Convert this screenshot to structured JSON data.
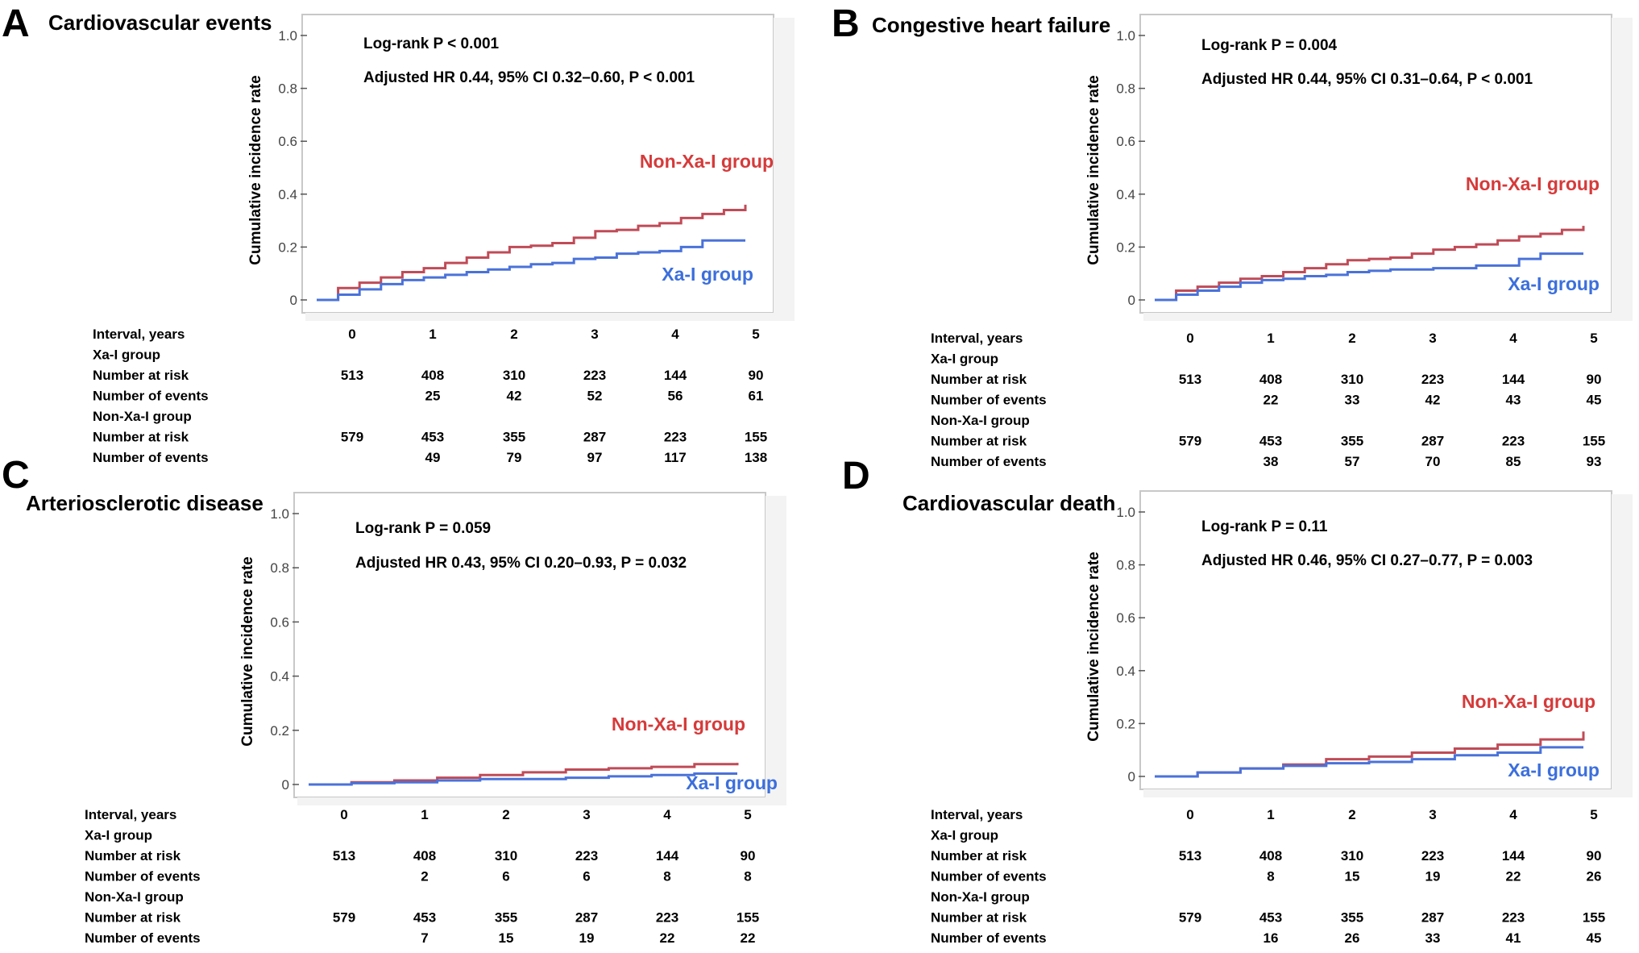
{
  "colors": {
    "xa_i": "#4a72d9",
    "non_xa_i": "#c04b57",
    "non_xa_i_label": "#d63a3a",
    "xa_i_label": "#3c6fdc",
    "plot_border": "#c8c8c8",
    "axis": "#555555"
  },
  "risk_table_labels": [
    "Interval, years",
    "Xa-I group",
    "Number at risk",
    "Number of events",
    "Non-Xa-I group",
    "Number at risk",
    "Number of events"
  ],
  "chart_data": [
    {
      "type": "line",
      "panel": "A",
      "title": "Cardiovascular events",
      "ylabel": "Cumulative incidence rate",
      "xlabel": "",
      "ylim": [
        0,
        1.0
      ],
      "xlim": [
        0,
        5
      ],
      "yticks": [
        "0",
        "0.2",
        "0.4",
        "0.6",
        "0.8",
        "1.0"
      ],
      "annotations": [
        "Log-rank P < 0.001",
        "Adjusted HR 0.44, 95% CI 0.32–0.60, P < 0.001"
      ],
      "series_labels": {
        "non_xa_i": "Non-Xa-I group",
        "xa_i": "Xa-I group"
      },
      "series": [
        {
          "name": "Non-Xa-I group",
          "x": [
            0,
            0.25,
            0.5,
            0.75,
            1,
            1.25,
            1.5,
            1.75,
            2,
            2.25,
            2.5,
            2.75,
            3,
            3.25,
            3.5,
            3.75,
            4,
            4.25,
            4.5,
            4.75,
            5
          ],
          "y": [
            0,
            0.045,
            0.065,
            0.085,
            0.105,
            0.12,
            0.14,
            0.16,
            0.18,
            0.2,
            0.205,
            0.215,
            0.235,
            0.26,
            0.265,
            0.28,
            0.29,
            0.31,
            0.325,
            0.34,
            0.36
          ]
        },
        {
          "name": "Xa-I group",
          "x": [
            0,
            0.25,
            0.5,
            0.75,
            1,
            1.25,
            1.5,
            1.75,
            2,
            2.25,
            2.5,
            2.75,
            3,
            3.25,
            3.5,
            3.75,
            4,
            4.25,
            4.5,
            4.75,
            5
          ],
          "y": [
            0,
            0.02,
            0.04,
            0.06,
            0.075,
            0.085,
            0.095,
            0.105,
            0.115,
            0.125,
            0.135,
            0.14,
            0.155,
            0.16,
            0.175,
            0.18,
            0.185,
            0.2,
            0.225,
            0.225,
            0.225
          ]
        }
      ],
      "risk_table": {
        "intervals": [
          "0",
          "1",
          "2",
          "3",
          "4",
          "5"
        ],
        "xa_i_at_risk": [
          "513",
          "408",
          "310",
          "223",
          "144",
          "90"
        ],
        "xa_i_events": [
          "",
          "25",
          "42",
          "52",
          "56",
          "61"
        ],
        "non_xa_i_at_risk": [
          "579",
          "453",
          "355",
          "287",
          "223",
          "155"
        ],
        "non_xa_i_events": [
          "",
          "49",
          "79",
          "97",
          "117",
          "138"
        ]
      }
    },
    {
      "type": "line",
      "panel": "B",
      "title": "Congestive heart failure",
      "ylabel": "Cumulative incidence rate",
      "xlabel": "",
      "ylim": [
        0,
        1.0
      ],
      "xlim": [
        0,
        5
      ],
      "yticks": [
        "0",
        "0.2",
        "0.4",
        "0.6",
        "0.8",
        "1.0"
      ],
      "annotations": [
        "Log-rank P = 0.004",
        "Adjusted HR 0.44, 95% CI 0.31–0.64, P < 0.001"
      ],
      "series_labels": {
        "non_xa_i": "Non-Xa-I group",
        "xa_i": "Xa-I group"
      },
      "series": [
        {
          "name": "Non-Xa-I group",
          "x": [
            0,
            0.25,
            0.5,
            0.75,
            1,
            1.25,
            1.5,
            1.75,
            2,
            2.25,
            2.5,
            2.75,
            3,
            3.25,
            3.5,
            3.75,
            4,
            4.25,
            4.5,
            4.75,
            5
          ],
          "y": [
            0,
            0.035,
            0.05,
            0.065,
            0.08,
            0.09,
            0.105,
            0.12,
            0.135,
            0.15,
            0.155,
            0.16,
            0.175,
            0.19,
            0.2,
            0.21,
            0.225,
            0.24,
            0.25,
            0.265,
            0.28
          ]
        },
        {
          "name": "Xa-I group",
          "x": [
            0,
            0.25,
            0.5,
            0.75,
            1,
            1.25,
            1.5,
            1.75,
            2,
            2.25,
            2.5,
            2.75,
            3,
            3.25,
            3.5,
            3.75,
            4,
            4.25,
            4.5,
            4.75,
            5
          ],
          "y": [
            0,
            0.02,
            0.035,
            0.05,
            0.065,
            0.075,
            0.08,
            0.09,
            0.095,
            0.105,
            0.11,
            0.115,
            0.115,
            0.12,
            0.12,
            0.13,
            0.13,
            0.155,
            0.175,
            0.175,
            0.175
          ]
        }
      ],
      "risk_table": {
        "intervals": [
          "0",
          "1",
          "2",
          "3",
          "4",
          "5"
        ],
        "xa_i_at_risk": [
          "513",
          "408",
          "310",
          "223",
          "144",
          "90"
        ],
        "xa_i_events": [
          "",
          "22",
          "33",
          "42",
          "43",
          "45"
        ],
        "non_xa_i_at_risk": [
          "579",
          "453",
          "355",
          "287",
          "223",
          "155"
        ],
        "non_xa_i_events": [
          "",
          "38",
          "57",
          "70",
          "85",
          "93"
        ]
      }
    },
    {
      "type": "line",
      "panel": "C",
      "title": "Arteriosclerotic disease",
      "ylabel": "Cumulative incidence rate",
      "xlabel": "",
      "ylim": [
        0,
        1.0
      ],
      "xlim": [
        0,
        5
      ],
      "yticks": [
        "0",
        "0.2",
        "0.4",
        "0.6",
        "0.8",
        "1.0"
      ],
      "annotations": [
        "Log-rank P = 0.059",
        "Adjusted HR 0.43, 95% CI 0.20–0.93, P = 0.032"
      ],
      "series_labels": {
        "non_xa_i": "Non-Xa-I group",
        "xa_i": "Xa-I group"
      },
      "series": [
        {
          "name": "Non-Xa-I group",
          "x": [
            0,
            0.5,
            1,
            1.5,
            2,
            2.5,
            3,
            3.5,
            4,
            4.5,
            5
          ],
          "y": [
            0,
            0.008,
            0.015,
            0.025,
            0.035,
            0.045,
            0.055,
            0.06,
            0.065,
            0.075,
            0.08
          ]
        },
        {
          "name": "Xa-I group",
          "x": [
            0,
            0.5,
            1,
            1.5,
            2,
            2.5,
            3,
            3.5,
            4,
            4.5,
            5
          ],
          "y": [
            0,
            0.005,
            0.008,
            0.015,
            0.02,
            0.02,
            0.025,
            0.03,
            0.035,
            0.04,
            0.04
          ]
        }
      ],
      "risk_table": {
        "intervals": [
          "0",
          "1",
          "2",
          "3",
          "4",
          "5"
        ],
        "xa_i_at_risk": [
          "513",
          "408",
          "310",
          "223",
          "144",
          "90"
        ],
        "xa_i_events": [
          "",
          "2",
          "6",
          "6",
          "8",
          "8"
        ],
        "non_xa_i_at_risk": [
          "579",
          "453",
          "355",
          "287",
          "223",
          "155"
        ],
        "non_xa_i_events": [
          "",
          "7",
          "15",
          "19",
          "22",
          "22"
        ]
      }
    },
    {
      "type": "line",
      "panel": "D",
      "title": "Cardiovascular death",
      "ylabel": "Cumulative incidence rate",
      "xlabel": "",
      "ylim": [
        0,
        1.0
      ],
      "xlim": [
        0,
        5
      ],
      "yticks": [
        "0",
        "0.2",
        "0.4",
        "0.6",
        "0.8",
        "1.0"
      ],
      "annotations": [
        "Log-rank P = 0.11",
        "Adjusted HR 0.46, 95% CI 0.27–0.77, P = 0.003"
      ],
      "series_labels": {
        "non_xa_i": "Non-Xa-I group",
        "xa_i": "Xa-I group"
      },
      "series": [
        {
          "name": "Non-Xa-I group",
          "x": [
            0,
            0.5,
            1,
            1.5,
            2,
            2.5,
            3,
            3.5,
            4,
            4.5,
            5
          ],
          "y": [
            0,
            0.015,
            0.03,
            0.045,
            0.065,
            0.075,
            0.09,
            0.105,
            0.12,
            0.14,
            0.17
          ]
        },
        {
          "name": "Xa-I group",
          "x": [
            0,
            0.5,
            1,
            1.5,
            2,
            2.5,
            3,
            3.5,
            4,
            4.5,
            5
          ],
          "y": [
            0,
            0.015,
            0.03,
            0.04,
            0.05,
            0.055,
            0.065,
            0.08,
            0.09,
            0.11,
            0.11
          ]
        }
      ],
      "risk_table": {
        "intervals": [
          "0",
          "1",
          "2",
          "3",
          "4",
          "5"
        ],
        "xa_i_at_risk": [
          "513",
          "408",
          "310",
          "223",
          "144",
          "90"
        ],
        "xa_i_events": [
          "",
          "8",
          "15",
          "19",
          "22",
          "26"
        ],
        "non_xa_i_at_risk": [
          "579",
          "453",
          "355",
          "287",
          "223",
          "155"
        ],
        "non_xa_i_events": [
          "",
          "16",
          "26",
          "33",
          "41",
          "45"
        ]
      }
    }
  ]
}
